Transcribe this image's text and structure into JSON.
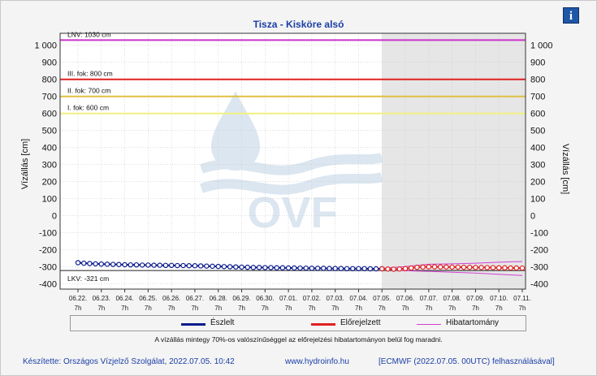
{
  "header": {
    "title": "Tisza - Kisköre alsó",
    "info_label": "i"
  },
  "chart_data": {
    "type": "line",
    "title": "Tisza - Kisköre alsó",
    "ylabel": "Vízállás [cm]",
    "ylabel_right": "Vízállás [cm]",
    "ylim": [
      -430,
      1070
    ],
    "yticks": [
      -400,
      -300,
      -200,
      -100,
      0,
      100,
      200,
      300,
      400,
      500,
      600,
      700,
      800,
      900,
      1000
    ],
    "ytick_labels": [
      "-400",
      "-300",
      "-200",
      "-100",
      "0",
      "100",
      "200",
      "300",
      "400",
      "500",
      "600",
      "700",
      "800",
      "900",
      "1 000"
    ],
    "x_dates": [
      "06.22.",
      "06.23.",
      "06.24.",
      "06.25.",
      "06.26.",
      "06.27.",
      "06.28.",
      "06.29.",
      "06.30.",
      "07.01.",
      "07.02.",
      "07.03.",
      "07.04.",
      "07.05.",
      "07.06.",
      "07.07.",
      "07.08.",
      "07.09.",
      "07.10.",
      "07.11."
    ],
    "x_hour_label": "7h",
    "forecast_start": "07.05. 7h",
    "grid": true,
    "thresholds": [
      {
        "label": "LNV: 1030 cm",
        "value": 1030,
        "color": "#cc33cc"
      },
      {
        "label": "III. fok: 800 cm",
        "value": 800,
        "color": "#e02020"
      },
      {
        "label": "II. fok: 700 cm",
        "value": 700,
        "color": "#e0c040"
      },
      {
        "label": "I. fok: 600 cm",
        "value": 600,
        "color": "#f2f080"
      },
      {
        "label": "LKV: -321 cm",
        "value": -321,
        "color": "#222222"
      }
    ],
    "series": [
      {
        "name": "Észlelt",
        "color": "#0a1a8c",
        "x": [
          0,
          0.25,
          0.5,
          0.75,
          1,
          1.25,
          1.5,
          1.75,
          2,
          2.25,
          2.5,
          2.75,
          3,
          3.25,
          3.5,
          3.75,
          4,
          4.25,
          4.5,
          4.75,
          5,
          5.25,
          5.5,
          5.75,
          6,
          6.25,
          6.5,
          6.75,
          7,
          7.25,
          7.5,
          7.75,
          8,
          8.25,
          8.5,
          8.75,
          9,
          9.25,
          9.5,
          9.75,
          10,
          10.25,
          10.5,
          10.75,
          11,
          11.25,
          11.5,
          11.75,
          12,
          12.25,
          12.5,
          12.75,
          13
        ],
        "values": [
          -275,
          -278,
          -280,
          -282,
          -283,
          -284,
          -285,
          -286,
          -287,
          -288,
          -288,
          -289,
          -289,
          -290,
          -290,
          -291,
          -291,
          -292,
          -292,
          -293,
          -293,
          -294,
          -295,
          -296,
          -297,
          -298,
          -299,
          -300,
          -301,
          -302,
          -303,
          -303,
          -304,
          -304,
          -305,
          -305,
          -306,
          -306,
          -307,
          -307,
          -308,
          -308,
          -308,
          -309,
          -309,
          -309,
          -310,
          -310,
          -310,
          -310,
          -311,
          -311,
          -311
        ]
      },
      {
        "name": "Előrejelzett",
        "color": "#e02020",
        "x": [
          13,
          13.25,
          13.5,
          13.75,
          14,
          14.25,
          14.5,
          14.75,
          15,
          15.25,
          15.5,
          15.75,
          16,
          16.25,
          16.5,
          16.75,
          17,
          17.25,
          17.5,
          17.75,
          18,
          18.25,
          18.5,
          18.75,
          19
        ],
        "values": [
          -311,
          -312,
          -313,
          -312,
          -310,
          -306,
          -302,
          -300,
          -299,
          -299,
          -300,
          -300,
          -301,
          -301,
          -302,
          -302,
          -303,
          -303,
          -304,
          -304,
          -305,
          -305,
          -306,
          -306,
          -307
        ]
      },
      {
        "name": "Hibatartomány",
        "color": "#d040d0",
        "band_upper_x": [
          13,
          14,
          15,
          16,
          17,
          18,
          19
        ],
        "band_upper": [
          -308,
          -298,
          -284,
          -282,
          -278,
          -272,
          -268
        ],
        "band_lower_x": [
          13,
          14,
          15,
          16,
          17,
          18,
          19
        ],
        "band_lower": [
          -313,
          -322,
          -326,
          -331,
          -336,
          -343,
          -350
        ]
      }
    ]
  },
  "legend": {
    "items": [
      "Észlelt",
      "Előrejelzett",
      "Hibatartomány"
    ]
  },
  "note": "A vízállás mintegy 70%-os valószínűséggel az előrejelzési hibatartományon belül fog maradni.",
  "footer": {
    "credit": "Készítette: Országos Vízjelző Szolgálat, 2022.07.05. 10:42",
    "url": "www.hydroinfo.hu",
    "model": "[ECMWF (2022.07.05. 00UTC) felhasználásával]"
  },
  "watermark": {
    "text": "OVF",
    "icon": "ovf-water-drop-logo"
  }
}
